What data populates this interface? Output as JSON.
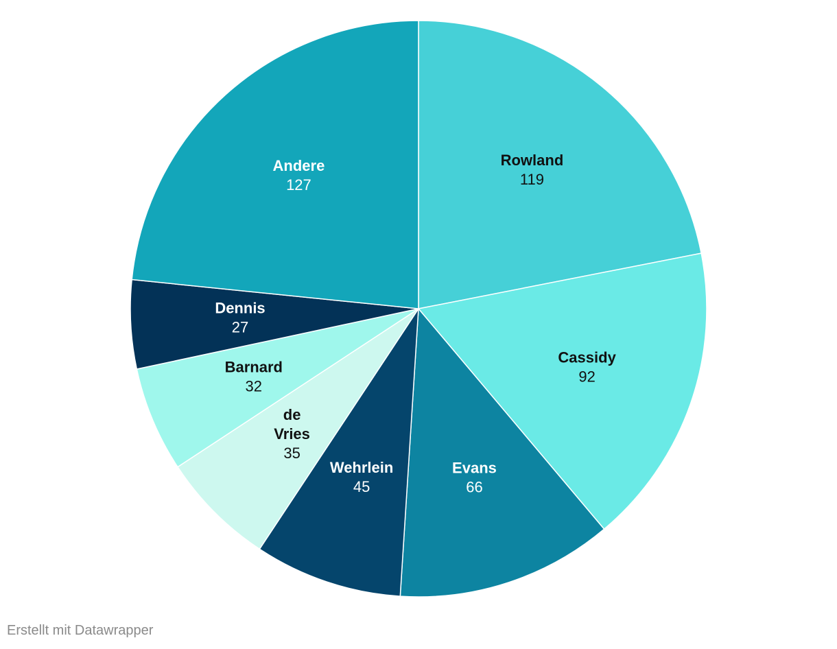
{
  "chart_data": {
    "type": "pie",
    "start": "top, clockwise",
    "slices": [
      {
        "label": "Rowland",
        "value": 119,
        "color": "#46d0d7",
        "text_color": "#111111"
      },
      {
        "label": "Cassidy",
        "value": 92,
        "color": "#6aeae6",
        "text_color": "#111111"
      },
      {
        "label": "Evans",
        "value": 66,
        "color": "#0d84a1",
        "text_color": "#ffffff"
      },
      {
        "label": "Wehrlein",
        "value": 45,
        "color": "#05456c",
        "text_color": "#ffffff"
      },
      {
        "label": "de Vries",
        "label_lines": [
          "de",
          "Vries"
        ],
        "value": 35,
        "color": "#cdf8ef",
        "text_color": "#111111"
      },
      {
        "label": "Barnard",
        "value": 32,
        "color": "#9ff7ec",
        "text_color": "#111111"
      },
      {
        "label": "Dennis",
        "value": 27,
        "color": "#033257",
        "text_color": "#ffffff"
      },
      {
        "label": "Andere",
        "value": 127,
        "color": "#13a6ba",
        "text_color": "#ffffff"
      }
    ]
  },
  "footer": {
    "credit": "Erstellt mit Datawrapper"
  }
}
